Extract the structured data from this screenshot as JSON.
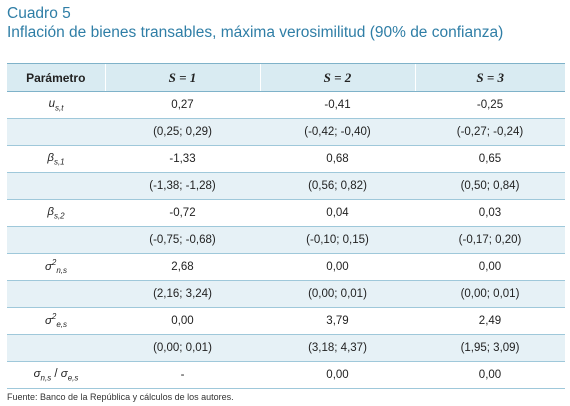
{
  "caption": {
    "label": "Cuadro 5",
    "text": "Inflación de bienes transables, máxima verosimilitud (90% de confianza)"
  },
  "table": {
    "headers": [
      "Parámetro",
      "S = 1",
      "S = 2",
      "S = 3"
    ],
    "rows": [
      {
        "param": "u",
        "sub": "s,t",
        "sup": "",
        "values": [
          "0,27",
          "-0,41",
          "-0,25"
        ],
        "ci": [
          "(0,25; 0,29)",
          "(-0,42; -0,40)",
          "(-0,27; -0,24)"
        ]
      },
      {
        "param": "β",
        "sub": "s,1",
        "sup": "",
        "values": [
          "-1,33",
          "0,68",
          "0,65"
        ],
        "ci": [
          "(-1,38; -1,28)",
          "(0,56; 0,82)",
          "(0,50; 0,84)"
        ]
      },
      {
        "param": "β",
        "sub": "s,2",
        "sup": "",
        "values": [
          "-0,72",
          "0,04",
          "0,03"
        ],
        "ci": [
          "(-0,75; -0,68)",
          "(-0,10; 0,15)",
          "(-0,17; 0,20)"
        ]
      },
      {
        "param": "σ",
        "sub": "n,s",
        "sup": "2",
        "values": [
          "2,68",
          "0,00",
          "0,00"
        ],
        "ci": [
          "(2,16; 3,24)",
          "(0,00; 0,01)",
          "(0,00; 0,01)"
        ]
      },
      {
        "param": "σ",
        "sub": "e,s",
        "sup": "2",
        "values": [
          "0,00",
          "3,79",
          "2,49"
        ],
        "ci": [
          "(0,00; 0,01)",
          "(3,18; 4,37)",
          "(1,95; 3,09)"
        ]
      }
    ],
    "last_row": {
      "num": "σ",
      "num_sub": "n,s",
      "slash": " / ",
      "den": "σ",
      "den_sub": "e,s",
      "values": [
        "-",
        "0,00",
        "0,00"
      ]
    }
  },
  "source": "Fuente: Banco de la República y cálculos de los autores."
}
